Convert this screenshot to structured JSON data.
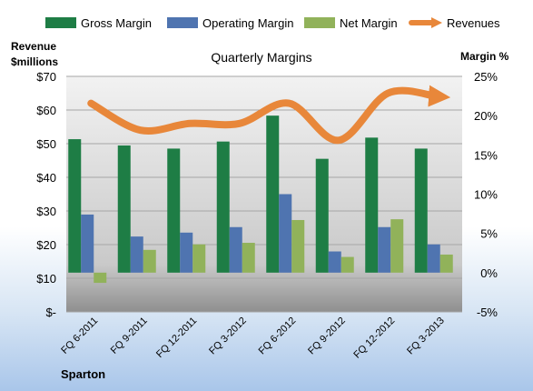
{
  "chart_data": {
    "type": "bar",
    "title": "Quarterly Margins",
    "company": "Sparton",
    "left_axis": {
      "label_lines": [
        "Revenue",
        "$millions"
      ],
      "ticks": [
        "$-",
        "$10",
        "$20",
        "$30",
        "$40",
        "$50",
        "$60",
        "$70"
      ],
      "range": [
        0,
        70
      ]
    },
    "right_axis": {
      "label": "Margin %",
      "ticks": [
        "-5%",
        "0%",
        "5%",
        "10%",
        "15%",
        "20%",
        "25%"
      ],
      "range": [
        -5,
        25
      ]
    },
    "categories": [
      "FQ 6-2011",
      "FQ 9-2011",
      "FQ 12-2011",
      "FQ 3-2012",
      "FQ 6-2012",
      "FQ 9-2012",
      "FQ 12-2012",
      "FQ 3-2013"
    ],
    "series": [
      {
        "name": "Gross Margin",
        "axis": "right",
        "color": "#1e7d45",
        "values": [
          17,
          16.2,
          15.8,
          16.7,
          20,
          14.5,
          17.2,
          15.8
        ]
      },
      {
        "name": "Operating Margin",
        "axis": "right",
        "color": "#4f74b0",
        "values": [
          7.4,
          4.6,
          5.1,
          5.8,
          10,
          2.7,
          5.8,
          3.6
        ]
      },
      {
        "name": "Net Margin",
        "axis": "right",
        "color": "#91b25a",
        "values": [
          -1.3,
          2.9,
          3.6,
          3.8,
          6.7,
          2,
          6.8,
          2.3
        ]
      },
      {
        "name": "Revenues",
        "axis": "left",
        "type": "line",
        "color": "#e8873a",
        "values": [
          62,
          54,
          56,
          56,
          62,
          51,
          65,
          64
        ]
      }
    ],
    "grid": true,
    "legend_position": "top"
  }
}
